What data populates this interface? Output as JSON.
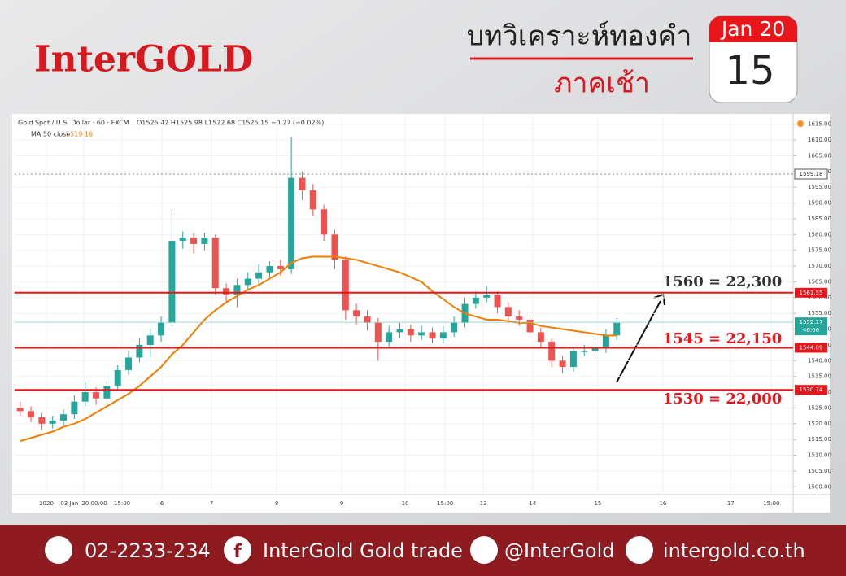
{
  "header": {
    "brand": "InterGOLD",
    "title": "บทวิเคราะห์ทองคำ",
    "session": "ภาคเช้า",
    "month": "Jan 20",
    "day": "15"
  },
  "footer": {
    "phone": "02-2233-234",
    "facebook": "InterGold Gold trade",
    "line": "@InterGold",
    "web": "intergold.co.th"
  },
  "chart_data": {
    "type": "candlestick",
    "symbol": "Gold Spot / U.S. Dollar · 60 · FXCM",
    "ohlc_text": "O1525.42 H1525.98 L1522.68 C1525.15 −0.27 (−0.02%)",
    "ma_value": 1519.16,
    "up_color": "#26a69a",
    "down_color": "#ef5350",
    "x": [
      2,
      6,
      10,
      14,
      18,
      22,
      26,
      30,
      34,
      38,
      42,
      46,
      50,
      54,
      58,
      62,
      66,
      70,
      74,
      78,
      82,
      86,
      90,
      94,
      98,
      102,
      106,
      110,
      114,
      118,
      122,
      126,
      130,
      134,
      138,
      142,
      146,
      150,
      154,
      158,
      162,
      166,
      170,
      174,
      178,
      182,
      186,
      190,
      194,
      198,
      202,
      206,
      210,
      214,
      218,
      222
    ],
    "open": [
      1525,
      1524,
      1522,
      1520,
      1521,
      1523,
      1527,
      1530,
      1528,
      1532,
      1537,
      1541,
      1545,
      1548,
      1552,
      1578,
      1579,
      1577,
      1579,
      1563,
      1561,
      1564,
      1566,
      1568,
      1570,
      1569,
      1598,
      1594,
      1588,
      1580,
      1572,
      1556,
      1554,
      1552,
      1546,
      1549,
      1550,
      1548,
      1549,
      1547,
      1549,
      1552,
      1558,
      1560,
      1561,
      1557,
      1554,
      1553,
      1549,
      1546,
      1540,
      1538,
      1543,
      1543,
      1544,
      1548
    ],
    "high": [
      1527,
      1525.5,
      1523.5,
      1522.5,
      1524.5,
      1529,
      1533,
      1531.5,
      1533.5,
      1538.5,
      1543,
      1547,
      1550,
      1554,
      1588,
      1581,
      1580.5,
      1580.5,
      1580,
      1564.5,
      1566,
      1568,
      1570.5,
      1571.5,
      1572,
      1611,
      1600,
      1596,
      1589.5,
      1581.5,
      1573,
      1558,
      1556,
      1553.5,
      1551,
      1552,
      1551.5,
      1551,
      1550.5,
      1551,
      1554,
      1560,
      1562,
      1563.5,
      1562,
      1558.5,
      1556,
      1554.5,
      1550.5,
      1547,
      1541.5,
      1544.5,
      1545,
      1546,
      1550,
      1553.5
    ],
    "low": [
      1522.5,
      1520.5,
      1518,
      1518.5,
      1519.5,
      1521.5,
      1525.5,
      1526,
      1526.5,
      1530.5,
      1535.5,
      1539.5,
      1541,
      1546,
      1551,
      1575.5,
      1574,
      1575,
      1561,
      1558,
      1557,
      1562.5,
      1564,
      1566.5,
      1567,
      1567.5,
      1591,
      1586,
      1578,
      1569,
      1553,
      1551.5,
      1549.5,
      1540,
      1544.5,
      1547,
      1546,
      1546.5,
      1545.5,
      1545.5,
      1547.5,
      1550.5,
      1556.5,
      1558.5,
      1555,
      1552,
      1551,
      1547.5,
      1544,
      1538,
      1536,
      1536.5,
      1541.5,
      1541.5,
      1542.5,
      1546.5
    ],
    "close": [
      1524,
      1522,
      1520,
      1521,
      1523,
      1527,
      1530,
      1528,
      1532,
      1537,
      1541,
      1545,
      1548,
      1552,
      1578,
      1579,
      1577,
      1579,
      1563,
      1561,
      1564,
      1566,
      1568,
      1570,
      1569,
      1598,
      1594,
      1588,
      1580,
      1572,
      1556,
      1554,
      1552,
      1546,
      1549,
      1550,
      1548,
      1549,
      1547,
      1549,
      1552,
      1558,
      1560,
      1561,
      1557,
      1554,
      1553,
      1549,
      1546,
      1540,
      1538,
      1543,
      1543,
      1544,
      1548,
      1552
    ],
    "series": [
      {
        "name": "MA 50 close",
        "color": "#f57c00",
        "values": [
          1514.5,
          1515.5,
          1516.5,
          1517.5,
          1519,
          1520,
          1521.5,
          1523.5,
          1525.5,
          1527.5,
          1529.5,
          1532,
          1535,
          1538,
          1542,
          1545,
          1549,
          1553,
          1556,
          1558.5,
          1560.5,
          1562.5,
          1564,
          1566,
          1568,
          1571,
          1572.5,
          1573,
          1573,
          1573,
          1572.5,
          1572,
          1571,
          1570,
          1569,
          1568,
          1566.5,
          1565,
          1562,
          1559.5,
          1557,
          1555,
          1554,
          1553,
          1553,
          1552.5,
          1552,
          1552,
          1551,
          1550.5,
          1550,
          1549.5,
          1549,
          1548.5,
          1548,
          1548
        ]
      }
    ],
    "hlines": [
      {
        "value": 1561.55,
        "color": "#e8151b"
      },
      {
        "value": 1544.09,
        "color": "#e8151b"
      },
      {
        "value": 1530.74,
        "color": "#e8151b"
      }
    ],
    "dotted_line": 1599.18,
    "last_price": 1552.17,
    "countdown": "46:06",
    "annotations": [
      {
        "text": "1560 = 22,300",
        "color": "#333333"
      },
      {
        "text": "1545 = 22,150",
        "color": "#e8151b"
      },
      {
        "text": "1530 = 22,000",
        "color": "#e8151b"
      }
    ],
    "xlim": [
      0,
      287
    ],
    "xticks": [
      {
        "value": 11.7,
        "label": "2020"
      },
      {
        "value": 25.5,
        "label": "03 Jan '20  00:00"
      },
      {
        "value": 39.6,
        "label": "15:00"
      },
      {
        "value": 54.3,
        "label": "6"
      },
      {
        "value": 72.6,
        "label": "7"
      },
      {
        "value": 96.6,
        "label": "8"
      },
      {
        "value": 120.6,
        "label": "9"
      },
      {
        "value": 144,
        "label": "10"
      },
      {
        "value": 158.7,
        "label": "15:00"
      },
      {
        "value": 172.8,
        "label": "13"
      },
      {
        "value": 191,
        "label": "14"
      },
      {
        "value": 215,
        "label": "15"
      },
      {
        "value": 239,
        "label": "16"
      },
      {
        "value": 264,
        "label": "17"
      },
      {
        "value": 279,
        "label": "15:00"
      }
    ],
    "ylim": [
      1497.5,
      1617.5
    ],
    "yticks": [
      {
        "value": 1500,
        "label": "1500.00"
      },
      {
        "value": 1505,
        "label": "1505.00"
      },
      {
        "value": 1510,
        "label": "1510.00"
      },
      {
        "value": 1515,
        "label": "1515.00"
      },
      {
        "value": 1520,
        "label": "1520.00"
      },
      {
        "value": 1525,
        "label": "1525.00"
      },
      {
        "value": 1530,
        "label": "1530.00"
      },
      {
        "value": 1535,
        "label": "1535.00"
      },
      {
        "value": 1540,
        "label": "1540.00"
      },
      {
        "value": 1545,
        "label": "1545.00"
      },
      {
        "value": 1550,
        "label": "1550.00"
      },
      {
        "value": 1555,
        "label": "1555.00"
      },
      {
        "value": 1560,
        "label": "1560.00"
      },
      {
        "value": 1565,
        "label": "1565.00"
      },
      {
        "value": 1570,
        "label": "1570.00"
      },
      {
        "value": 1575,
        "label": "1575.00"
      },
      {
        "value": 1580,
        "label": "1580.00"
      },
      {
        "value": 1585,
        "label": "1585.00"
      },
      {
        "value": 1590,
        "label": "1590.00"
      },
      {
        "value": 1595,
        "label": "1595.00"
      },
      {
        "value": 1600,
        "label": "1600.00"
      },
      {
        "value": 1605,
        "label": "1605.00"
      },
      {
        "value": 1610,
        "label": "1610.00"
      },
      {
        "value": 1615,
        "label": "1615.00"
      }
    ]
  }
}
